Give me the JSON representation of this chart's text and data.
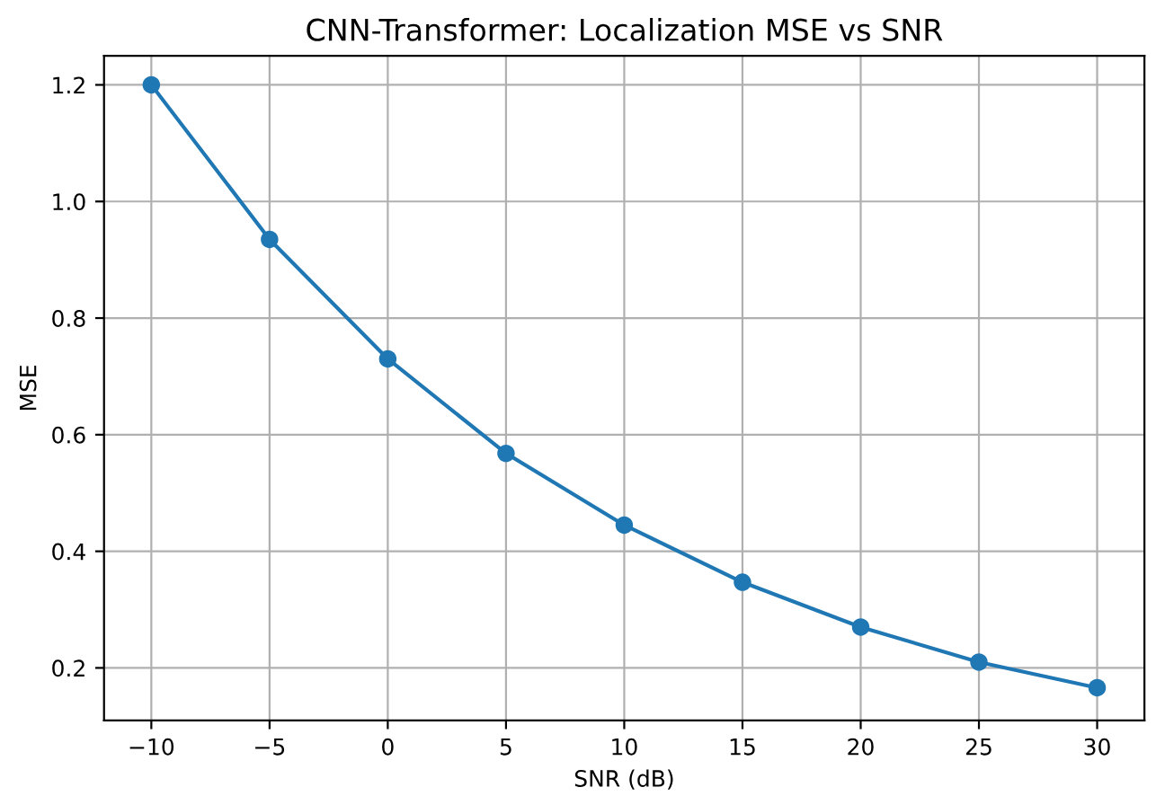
{
  "chart_data": {
    "type": "line",
    "title": "CNN-Transformer: Localization MSE vs SNR",
    "xlabel": "SNR (dB)",
    "ylabel": "MSE",
    "x": [
      -10,
      -5,
      0,
      5,
      10,
      15,
      20,
      25,
      30
    ],
    "series": [
      {
        "color": "#1f77b4",
        "values": [
          1.2,
          0.935,
          0.73,
          0.568,
          0.445,
          0.347,
          0.27,
          0.21,
          0.166
        ]
      }
    ],
    "xlim": [
      -12,
      32
    ],
    "ylim": [
      0.11,
      1.25
    ],
    "xticks": [
      {
        "value": -10,
        "label": "−10"
      },
      {
        "value": -5,
        "label": "−5"
      },
      0,
      5,
      10,
      15,
      20,
      25,
      30
    ],
    "yticks": [
      0.2,
      0.4,
      0.6,
      0.8,
      {
        "value": 1.0,
        "label": "1.0"
      },
      1.2
    ],
    "grid": true,
    "marker": "circle",
    "line_style": "solid"
  }
}
